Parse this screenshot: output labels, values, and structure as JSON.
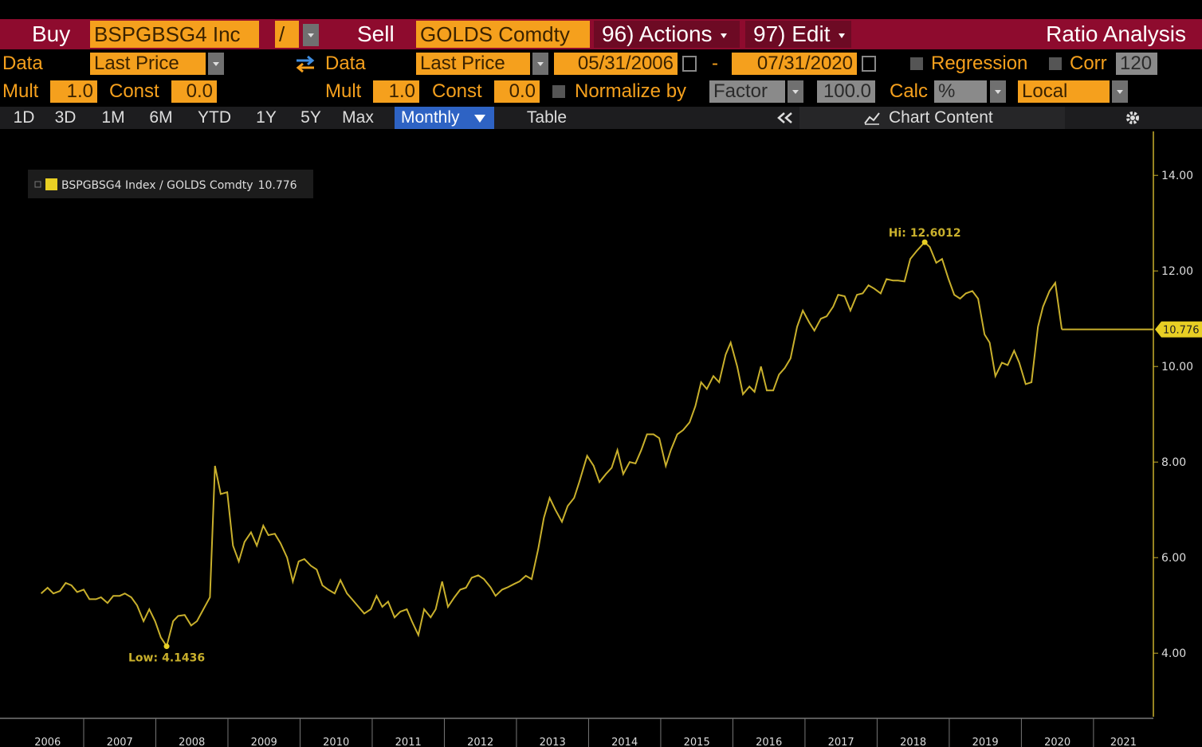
{
  "toolbar": {
    "buy_label": "Buy",
    "buy_ticker": "BSPGBSG4 Inc",
    "operator": "/",
    "sell_label": "Sell",
    "sell_ticker": "GOLDS Comdty",
    "actions": "96) Actions",
    "edit": "97) Edit",
    "title": "Ratio Analysis"
  },
  "settings": {
    "data_label_1": "Data",
    "field_1": "Last Price",
    "data_label_2": "Data",
    "field_2": "Last Price",
    "start_date": "05/31/2006",
    "date_sep": "-",
    "end_date": "07/31/2020",
    "regression": "Regression",
    "corr": "Corr",
    "corr_window": "120",
    "mult_label_1": "Mult",
    "mult_1": "1.0",
    "const_label_1": "Const",
    "const_1": "0.0",
    "mult_label_2": "Mult",
    "mult_2": "1.0",
    "const_label_2": "Const",
    "const_2": "0.0",
    "normalize": "Normalize by",
    "normalize_method": "Factor",
    "factor": "100.0",
    "calc": "Calc",
    "calc_method": "%",
    "currency": "Local"
  },
  "tabs": {
    "periods": [
      "1D",
      "3D",
      "1M",
      "6M",
      "YTD",
      "1Y",
      "5Y",
      "Max"
    ],
    "frequency": "Monthly",
    "table": "Table",
    "chart_content": "Chart Content"
  },
  "chart_data": {
    "type": "line",
    "series": [
      {
        "name": "BSPGBSG4 Index / GOLDS Comdty",
        "color": "#c9b02c",
        "x": [
          2006.41,
          2006.5,
          2006.58,
          2006.67,
          2006.75,
          2006.83,
          2006.91,
          2007.0,
          2007.08,
          2007.17,
          2007.24,
          2007.33,
          2007.41,
          2007.5,
          2007.57,
          2007.66,
          2007.74,
          2007.83,
          2007.91,
          2007.99,
          2008.07,
          2008.15,
          2008.24,
          2008.31,
          2008.4,
          2008.49,
          2008.57,
          2008.66,
          2008.75,
          2008.82,
          2008.9,
          2008.99,
          2009.07,
          2009.15,
          2009.23,
          2009.32,
          2009.4,
          2009.49,
          2009.56,
          2009.65,
          2009.73,
          2009.82,
          2009.9,
          2009.98,
          2010.06,
          2010.15,
          2010.23,
          2010.31,
          2010.39,
          2010.48,
          2010.56,
          2010.65,
          2010.72,
          2010.81,
          2010.89,
          2010.98,
          2011.06,
          2011.14,
          2011.22,
          2011.31,
          2011.39,
          2011.48,
          2011.55,
          2011.64,
          2011.72,
          2011.81,
          2011.88,
          2011.97,
          2012.05,
          2012.14,
          2012.22,
          2012.3,
          2012.38,
          2012.47,
          2012.55,
          2012.64,
          2012.71,
          2012.8,
          2012.88,
          2012.97,
          2013.04,
          2013.13,
          2013.21,
          2013.3,
          2013.38,
          2013.46,
          2013.54,
          2013.63,
          2013.71,
          2013.8,
          2013.87,
          2013.98,
          2014.07,
          2014.15,
          2014.24,
          2014.32,
          2014.4,
          2014.48,
          2014.57,
          2014.65,
          2014.73,
          2014.81,
          2014.9,
          2014.98,
          2015.07,
          2015.14,
          2015.23,
          2015.31,
          2015.4,
          2015.48,
          2015.56,
          2015.64,
          2015.73,
          2015.81,
          2015.9,
          2015.97,
          2016.06,
          2016.14,
          2016.23,
          2016.3,
          2016.39,
          2016.47,
          2016.56,
          2016.64,
          2016.72,
          2016.8,
          2016.89,
          2016.97,
          2017.06,
          2017.13,
          2017.22,
          2017.3,
          2017.39,
          2017.46,
          2017.55,
          2017.63,
          2017.72,
          2017.8,
          2017.88,
          2017.96,
          2018.05,
          2018.13,
          2018.22,
          2018.29,
          2018.38,
          2018.46,
          2018.55,
          2018.66,
          2018.73,
          2018.82,
          2018.9,
          2018.99,
          2019.07,
          2019.15,
          2019.23,
          2019.32,
          2019.4,
          2019.49,
          2019.56,
          2019.64,
          2019.73,
          2019.81,
          2019.9,
          2019.97,
          2020.06,
          2020.14,
          2020.23,
          2020.3,
          2020.39,
          2020.47,
          2020.56
        ],
        "values": [
          5.25,
          5.37,
          5.25,
          5.3,
          5.47,
          5.42,
          5.28,
          5.33,
          5.13,
          5.13,
          5.17,
          5.05,
          5.2,
          5.2,
          5.25,
          5.17,
          5.0,
          4.67,
          4.92,
          4.67,
          4.33,
          4.1436,
          4.67,
          4.78,
          4.8,
          4.58,
          4.67,
          4.92,
          5.17,
          7.92,
          7.33,
          7.37,
          6.25,
          5.92,
          6.33,
          6.53,
          6.25,
          6.67,
          6.47,
          6.5,
          6.3,
          6.0,
          5.5,
          5.92,
          5.97,
          5.83,
          5.75,
          5.42,
          5.33,
          5.25,
          5.53,
          5.25,
          5.13,
          4.97,
          4.83,
          4.92,
          5.2,
          4.97,
          5.08,
          4.75,
          4.87,
          4.92,
          4.67,
          4.38,
          4.92,
          4.75,
          4.92,
          5.5,
          4.97,
          5.17,
          5.33,
          5.37,
          5.58,
          5.63,
          5.55,
          5.38,
          5.2,
          5.33,
          5.38,
          5.45,
          5.5,
          5.62,
          5.55,
          6.17,
          6.83,
          7.25,
          7.0,
          6.75,
          7.08,
          7.25,
          7.58,
          8.13,
          7.92,
          7.58,
          7.75,
          7.88,
          8.25,
          7.75,
          8.0,
          7.97,
          8.25,
          8.58,
          8.58,
          8.5,
          7.92,
          8.25,
          8.58,
          8.67,
          8.83,
          9.17,
          9.67,
          9.53,
          9.8,
          9.67,
          10.25,
          10.5,
          10.0,
          9.42,
          9.58,
          9.47,
          10.0,
          9.5,
          9.5,
          9.83,
          9.97,
          10.17,
          10.83,
          11.17,
          10.92,
          10.75,
          11.0,
          11.05,
          11.25,
          11.5,
          11.47,
          11.17,
          11.5,
          11.53,
          11.7,
          11.63,
          11.53,
          11.83,
          11.8,
          11.8,
          11.78,
          12.25,
          12.42,
          12.6012,
          12.5,
          12.17,
          12.25,
          11.83,
          11.5,
          11.42,
          11.53,
          11.58,
          11.42,
          10.67,
          10.5,
          9.8,
          10.08,
          10.03,
          10.33,
          10.08,
          9.63,
          9.67,
          10.83,
          11.25,
          11.58,
          11.75,
          10.776
        ]
      }
    ],
    "hi_label": "Hi:",
    "low_label": "Low:",
    "ylim": [
      2.67,
      14.92
    ],
    "yticks": [
      {
        "value": 4,
        "label": "4.00"
      },
      {
        "value": 6,
        "label": "6.00"
      },
      {
        "value": 8,
        "label": "8.00"
      },
      {
        "value": 10,
        "label": "10.00"
      },
      {
        "value": 12,
        "label": "12.00"
      },
      {
        "value": 14,
        "label": "14.00"
      }
    ],
    "xlim": [
      2006,
      2021.83
    ],
    "xticks": [
      2006,
      2007,
      2008,
      2009,
      2010,
      2011,
      2012,
      2013,
      2014,
      2015,
      2016,
      2017,
      2018,
      2019,
      2020,
      2021
    ]
  }
}
